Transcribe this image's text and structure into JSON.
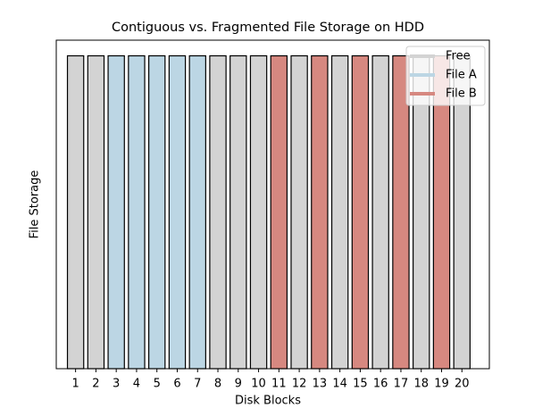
{
  "chart_data": {
    "type": "bar",
    "title": "Contiguous vs. Fragmented File Storage on HDD",
    "x_label": "Disk Blocks",
    "y_label": "File Storage",
    "x": [
      1,
      2,
      3,
      4,
      5,
      6,
      7,
      8,
      9,
      10,
      11,
      12,
      13,
      14,
      15,
      16,
      17,
      18,
      19,
      20
    ],
    "series": [
      {
        "name": "Free",
        "color": "#d3d3d3",
        "values": [
          1,
          1,
          null,
          null,
          null,
          null,
          null,
          1,
          1,
          1,
          null,
          1,
          null,
          1,
          null,
          1,
          null,
          1,
          null,
          1
        ]
      },
      {
        "name": "File A",
        "color": "#bcd6e4",
        "values": [
          null,
          null,
          1,
          1,
          1,
          1,
          1,
          null,
          null,
          null,
          null,
          null,
          null,
          null,
          null,
          null,
          null,
          null,
          null,
          null
        ]
      },
      {
        "name": "File B",
        "color": "#d68880",
        "values": [
          null,
          null,
          null,
          null,
          null,
          null,
          null,
          null,
          null,
          null,
          1,
          null,
          1,
          null,
          1,
          null,
          1,
          null,
          1,
          null
        ]
      }
    ],
    "xlim": [
      0.05,
      21.35
    ],
    "ylim": [
      0,
      1.05
    ],
    "xticks": [
      1,
      2,
      3,
      4,
      5,
      6,
      7,
      8,
      9,
      10,
      11,
      12,
      13,
      14,
      15,
      16,
      17,
      18,
      19,
      20
    ],
    "legend": "upper right"
  }
}
